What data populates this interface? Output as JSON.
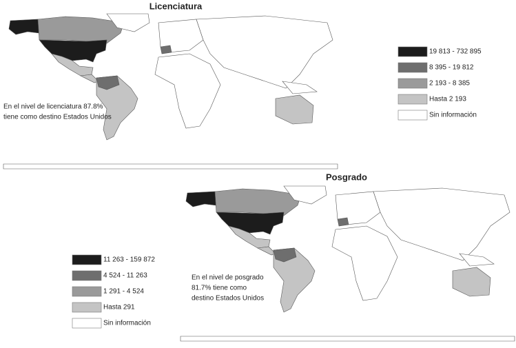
{
  "maps": [
    {
      "title": "Licenciatura",
      "legend": [
        {
          "label": "19 813 - 732 895",
          "color": "#1c1c1c"
        },
        {
          "label": "8 395 - 19 812",
          "color": "#6e6e6e"
        },
        {
          "label": "2 193 - 8 385",
          "color": "#9a9a9a"
        },
        {
          "label": "Hasta 2 193",
          "color": "#c4c4c4"
        },
        {
          "label": "Sin información",
          "color": "#ffffff"
        }
      ],
      "annotation": [
        "En el nivel de licenciatura 87.8%",
        "tiene como destino Estados Unidos"
      ]
    },
    {
      "title": "Posgrado",
      "legend": [
        {
          "label": "11 263 - 159 872",
          "color": "#1c1c1c"
        },
        {
          "label": "4 524 - 11 263",
          "color": "#6e6e6e"
        },
        {
          "label": "1 291 - 4 524",
          "color": "#9a9a9a"
        },
        {
          "label": "Hasta 291",
          "color": "#c4c4c4"
        },
        {
          "label": "Sin información",
          "color": "#ffffff"
        }
      ],
      "annotation": [
        "En el nivel de posgrado",
        "81.7% tiene como",
        "destino Estados Unidos"
      ]
    }
  ]
}
